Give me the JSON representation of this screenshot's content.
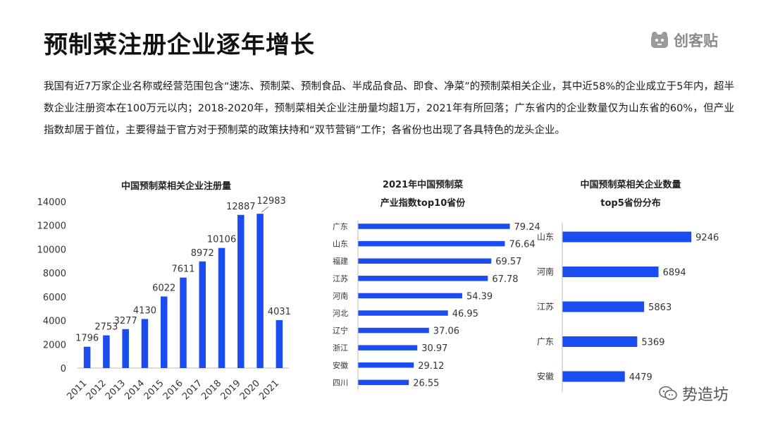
{
  "header": {
    "title": "预制菜注册企业逐年增长",
    "brand": "创客贴"
  },
  "description": "我国有近7万家企业名称或经营范围包含“速冻、预制菜、预制食品、半成品食品、即食、净菜”的预制菜相关企业，其中近58%的企业成立于5年内，超半数企业注册资本在100万元以内；2018-2020年，预制菜相关企业注册量均超1万，2021年有所回落；广东省内的企业数量仅为山东省的60%，但产业指数却居于首位，主要得益于官方对于预制菜的政策扶持和“双节营销”工作；各省份也出现了各具特色的龙头企业。",
  "watermark": "势造坊",
  "chart_data": [
    {
      "type": "bar",
      "title": "中国预制菜相关企业注册量",
      "categories": [
        "2011",
        "2012",
        "2013",
        "2014",
        "2015",
        "2016",
        "2017",
        "2018",
        "2019",
        "2020",
        "2021"
      ],
      "values": [
        1796,
        2753,
        3277,
        4130,
        6022,
        7611,
        8972,
        10106,
        12887,
        12983,
        4031
      ],
      "ylim": [
        0,
        14000
      ],
      "yticks": [
        0,
        2000,
        4000,
        6000,
        8000,
        10000,
        12000,
        14000
      ],
      "grid": false,
      "color": "#1a4cf0"
    },
    {
      "type": "bar",
      "orientation": "horizontal",
      "title_lines": [
        "2021年中国预制菜",
        "产业指数top10省份"
      ],
      "categories": [
        "广东",
        "山东",
        "福建",
        "江苏",
        "河南",
        "河北",
        "辽宁",
        "浙江",
        "安徽",
        "四川"
      ],
      "values": [
        79.24,
        76.64,
        69.57,
        67.78,
        54.39,
        46.95,
        37.06,
        30.97,
        29.12,
        26.55
      ],
      "xlim": [
        0,
        100
      ],
      "grid": false,
      "color": "#1a4cf0"
    },
    {
      "type": "bar",
      "orientation": "horizontal",
      "title_lines": [
        "中国预制菜相关企业数量",
        "top5省份分布"
      ],
      "categories": [
        "山东",
        "河南",
        "江苏",
        "广东",
        "安徽"
      ],
      "values": [
        9246,
        6894,
        5863,
        5369,
        4479
      ],
      "xlim": [
        0,
        10500
      ],
      "grid": false,
      "color": "#1a4cf0"
    }
  ]
}
